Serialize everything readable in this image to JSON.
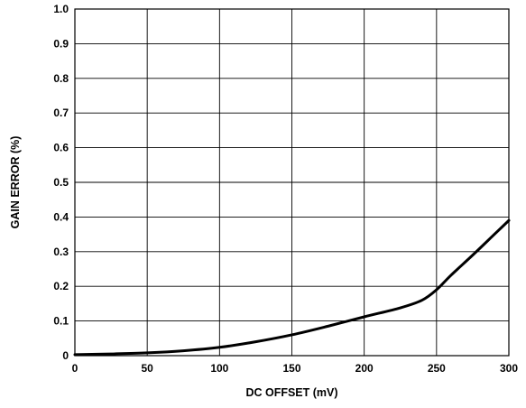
{
  "chart_data": {
    "type": "line",
    "title": "",
    "xlabel": "DC OFFSET (mV)",
    "ylabel": "GAIN ERROR (%)",
    "xlim": [
      0,
      300
    ],
    "ylim": [
      0,
      1.0
    ],
    "x_ticks": [
      "0",
      "50",
      "100",
      "150",
      "200",
      "250",
      "300"
    ],
    "y_ticks": [
      "0",
      "0.1",
      "0.2",
      "0.3",
      "0.4",
      "0.5",
      "0.6",
      "0.7",
      "0.8",
      "0.9",
      "1.0"
    ],
    "grid": true,
    "colors": {
      "line": "#000000",
      "grid": "#000000",
      "background": "#ffffff"
    },
    "series": [
      {
        "x": [
          0,
          25,
          50,
          75,
          100,
          125,
          150,
          175,
          200,
          225,
          240,
          250,
          260,
          275,
          290,
          300
        ],
        "y": [
          0.003,
          0.005,
          0.008,
          0.014,
          0.024,
          0.04,
          0.06,
          0.085,
          0.112,
          0.138,
          0.16,
          0.19,
          0.232,
          0.29,
          0.35,
          0.39
        ]
      }
    ]
  }
}
